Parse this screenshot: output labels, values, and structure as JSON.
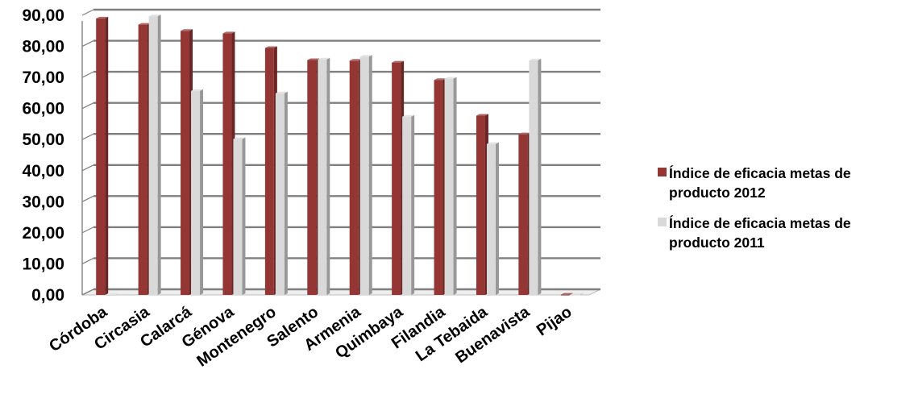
{
  "chart_data": {
    "type": "bar",
    "categories": [
      "Córdoba",
      "Circasia",
      "Calarcá",
      "Génova",
      "Montenegro",
      "Salento",
      "Armenia",
      "Quimbaya",
      "Filandia",
      "La Tebaida",
      "Buenavista",
      "Pijao"
    ],
    "series": [
      {
        "name": "Índice de eficacia metas de producto 2012",
        "color": "#943634",
        "values": [
          89.0,
          87.0,
          85.0,
          84.2,
          79.5,
          75.6,
          75.4,
          74.8,
          69.2,
          57.7,
          51.7,
          0.1
        ]
      },
      {
        "name": "Índice de eficacia metas de producto 2011",
        "color": "#d9d9d9",
        "values": [
          0.0,
          89.7,
          65.7,
          50.2,
          64.9,
          75.8,
          76.7,
          57.4,
          69.6,
          48.6,
          75.5,
          0.1
        ]
      }
    ],
    "yticks": [
      "0,00",
      "10,00",
      "20,00",
      "30,00",
      "40,00",
      "50,00",
      "60,00",
      "70,00",
      "80,00",
      "90,00"
    ],
    "ylim": [
      0,
      90
    ],
    "grid": true,
    "legend_position": "right",
    "style": "3d-column"
  }
}
